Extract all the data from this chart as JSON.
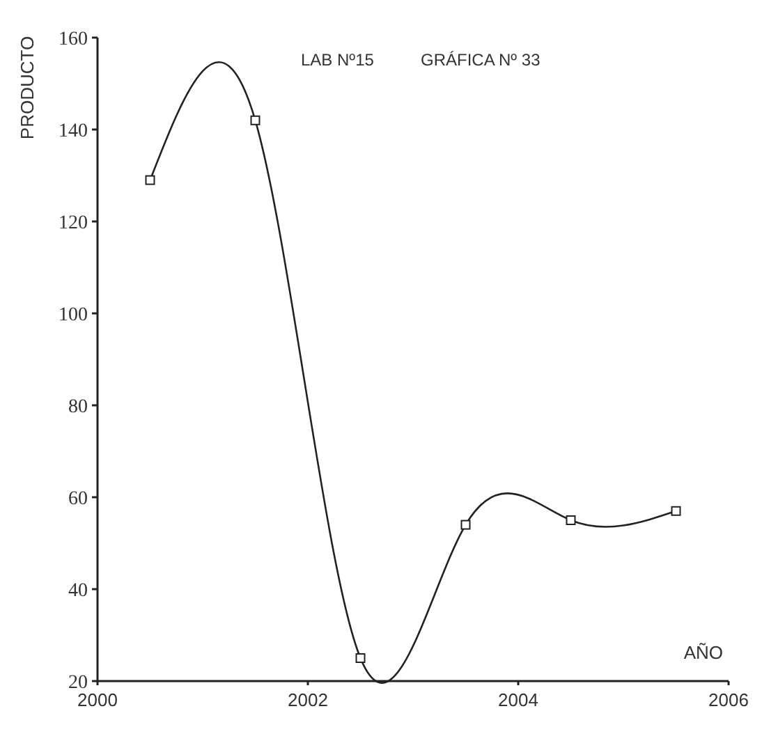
{
  "chart_data": {
    "type": "line",
    "title": "LAB Nº15",
    "subtitle": "GRÁFICA Nº 33",
    "xlabel": "AÑO",
    "ylabel": "PRODUCTO",
    "x": [
      2000.5,
      2001.5,
      2002.5,
      2003.5,
      2004.5,
      2005.5
    ],
    "series": [
      {
        "color": "#222222",
        "values": [
          129,
          142,
          25,
          54,
          55,
          57
        ]
      }
    ],
    "xlim": [
      2000,
      2006
    ],
    "xticks": [
      2000,
      2002,
      2004,
      2006
    ],
    "ylim": [
      20,
      160
    ],
    "yticks": [
      20,
      40,
      60,
      80,
      100,
      120,
      140,
      160
    ],
    "marker": "square",
    "line_style": "solid",
    "grid": false
  }
}
